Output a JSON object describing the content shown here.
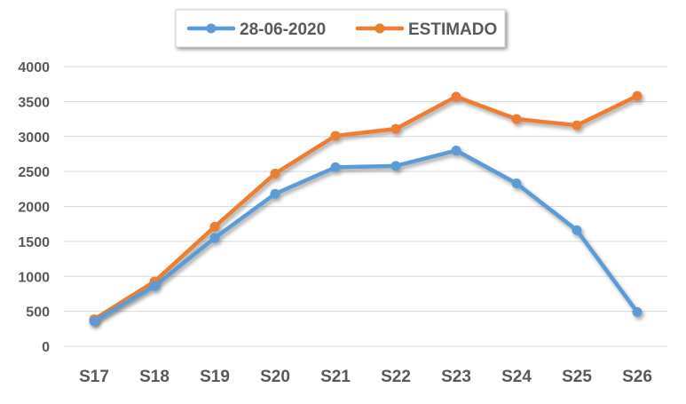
{
  "chart_data": {
    "type": "line",
    "categories": [
      "S17",
      "S18",
      "S19",
      "S20",
      "S21",
      "S22",
      "S23",
      "S24",
      "S25",
      "S26"
    ],
    "series": [
      {
        "name": "28-06-2020",
        "color": "#5B9BD5",
        "values": [
          360,
          860,
          1550,
          2180,
          2560,
          2580,
          2800,
          2330,
          1660,
          490
        ]
      },
      {
        "name": "ESTIMADO",
        "color": "#ED7D31",
        "values": [
          385,
          925,
          1710,
          2470,
          3010,
          3110,
          3570,
          3250,
          3160,
          3580
        ]
      }
    ],
    "ylim": [
      0,
      4000
    ],
    "yticks": [
      0,
      500,
      1000,
      1500,
      2000,
      2500,
      3000,
      3500,
      4000
    ],
    "grid": true,
    "legend": "top-center",
    "title": "",
    "xlabel": "",
    "ylabel": ""
  }
}
